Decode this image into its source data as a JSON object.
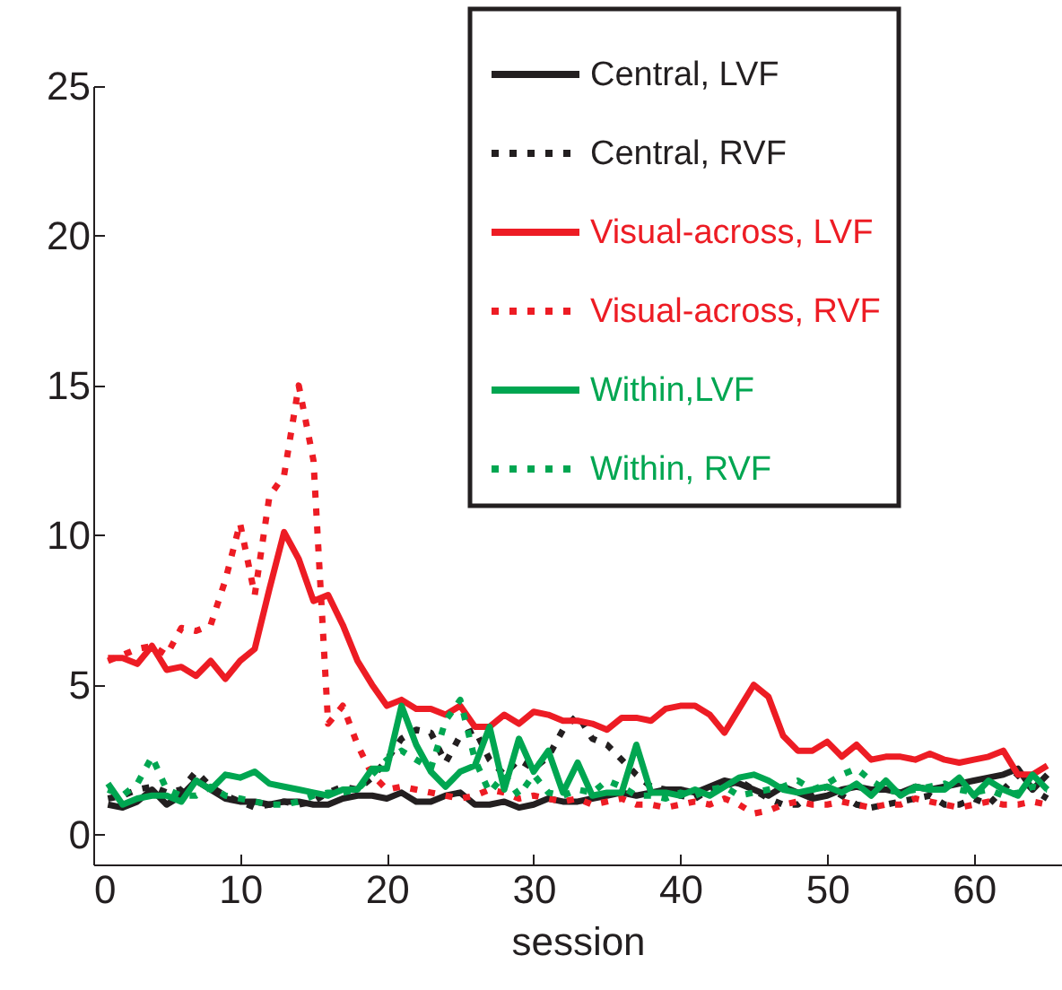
{
  "chart_data": {
    "type": "line",
    "xlabel": "session",
    "xlim": [
      0,
      66
    ],
    "xticks": [
      0,
      10,
      20,
      30,
      40,
      50,
      60
    ],
    "ylim": [
      -1,
      25
    ],
    "yticks": [
      0,
      5,
      10,
      15,
      20,
      25
    ],
    "grid": false,
    "legend": "top right",
    "marker": "none",
    "x": [
      1,
      2,
      3,
      4,
      5,
      6,
      7,
      8,
      9,
      10,
      11,
      12,
      13,
      14,
      15,
      16,
      17,
      18,
      19,
      20,
      21,
      22,
      23,
      24,
      25,
      26,
      27,
      28,
      29,
      30,
      31,
      32,
      33,
      34,
      35,
      36,
      37,
      38,
      39,
      40,
      41,
      42,
      43,
      44,
      45,
      46,
      47,
      48,
      49,
      50,
      51,
      52,
      53,
      54,
      55,
      56,
      57,
      58,
      59,
      60,
      61,
      62,
      63,
      64,
      65
    ],
    "series": [
      {
        "name": "Central, LVF",
        "color": "#231f20",
        "line_style": "solid",
        "values": [
          1.0,
          0.9,
          1.1,
          1.5,
          1.0,
          1.3,
          1.8,
          1.5,
          1.2,
          1.1,
          1.1,
          1.0,
          1.1,
          1.1,
          1.0,
          1.0,
          1.2,
          1.3,
          1.3,
          1.2,
          1.4,
          1.1,
          1.1,
          1.3,
          1.4,
          1.0,
          1.0,
          1.1,
          0.9,
          1.0,
          1.2,
          1.1,
          1.1,
          1.2,
          1.3,
          1.4,
          1.3,
          1.4,
          1.5,
          1.5,
          1.4,
          1.6,
          1.8,
          1.7,
          1.5,
          1.3,
          1.6,
          1.4,
          1.2,
          1.3,
          1.5,
          1.6,
          1.5,
          1.5,
          1.4,
          1.6,
          1.5,
          1.6,
          1.7,
          1.8,
          1.9,
          2.0,
          2.2,
          1.5,
          2.0
        ]
      },
      {
        "name": "Central, RVF",
        "color": "#231f20",
        "line_style": "dotted",
        "values": [
          1.2,
          1.3,
          1.5,
          1.6,
          1.4,
          1.5,
          2.1,
          1.6,
          1.3,
          1.1,
          0.9,
          1.0,
          1.1,
          1.0,
          1.1,
          1.4,
          1.6,
          1.5,
          1.9,
          2.5,
          3.2,
          3.5,
          3.4,
          2.4,
          3.3,
          3.5,
          2.5,
          2.0,
          2.5,
          2.2,
          2.6,
          3.5,
          4.0,
          3.2,
          3.0,
          2.5,
          2.0,
          1.6,
          1.5,
          1.3,
          1.2,
          1.5,
          1.6,
          1.8,
          1.5,
          1.2,
          1.0,
          1.0,
          1.4,
          1.6,
          1.3,
          1.0,
          0.9,
          1.0,
          1.1,
          1.2,
          1.3,
          1.0,
          1.0,
          1.2,
          1.0,
          1.5,
          2.0,
          1.5,
          1.2
        ]
      },
      {
        "name": "Visual-across, LVF",
        "color": "#ed1c24",
        "line_style": "solid",
        "values": [
          5.9,
          5.9,
          5.7,
          6.3,
          5.5,
          5.6,
          5.3,
          5.8,
          5.2,
          5.8,
          6.2,
          8.2,
          10.1,
          9.2,
          7.8,
          8.0,
          7.0,
          5.8,
          5.0,
          4.3,
          4.5,
          4.2,
          4.2,
          4.0,
          4.3,
          3.6,
          3.6,
          4.0,
          3.7,
          4.1,
          4.0,
          3.8,
          3.8,
          3.7,
          3.5,
          3.9,
          3.9,
          3.8,
          4.2,
          4.3,
          4.3,
          4.0,
          3.4,
          4.2,
          5.0,
          4.6,
          3.3,
          2.8,
          2.8,
          3.1,
          2.6,
          3.0,
          2.5,
          2.6,
          2.6,
          2.5,
          2.7,
          2.5,
          2.4,
          2.5,
          2.6,
          2.8,
          2.0,
          2.0,
          2.3
        ]
      },
      {
        "name": "Visual-across, RVF",
        "color": "#ed1c24",
        "line_style": "dotted",
        "values": [
          5.8,
          6.0,
          6.2,
          6.3,
          6.0,
          6.9,
          6.8,
          7.0,
          8.5,
          10.4,
          8.0,
          11.3,
          12.0,
          15.0,
          12.5,
          3.7,
          4.3,
          3.0,
          2.0,
          1.5,
          1.6,
          1.5,
          1.4,
          1.3,
          1.2,
          1.3,
          1.5,
          1.4,
          1.2,
          1.3,
          1.2,
          1.1,
          1.2,
          1.0,
          1.1,
          1.2,
          1.0,
          1.0,
          0.9,
          1.0,
          1.1,
          1.0,
          1.2,
          1.0,
          0.7,
          0.8,
          1.0,
          1.1,
          1.0,
          1.0,
          1.1,
          1.0,
          0.9,
          1.0,
          1.0,
          1.2,
          1.1,
          1.0,
          0.9,
          1.0,
          1.1,
          1.0,
          1.0,
          1.1,
          1.0
        ]
      },
      {
        "name": "Within,LVF",
        "color": "#00a651",
        "line_style": "solid",
        "values": [
          1.7,
          1.0,
          1.2,
          1.3,
          1.3,
          1.1,
          1.8,
          1.5,
          2.0,
          1.9,
          2.1,
          1.7,
          1.6,
          1.5,
          1.4,
          1.3,
          1.5,
          1.5,
          2.2,
          2.2,
          4.3,
          3.0,
          2.1,
          1.6,
          2.1,
          2.3,
          3.6,
          1.5,
          3.2,
          2.1,
          2.8,
          1.4,
          2.4,
          1.3,
          1.4,
          1.4,
          3.0,
          1.4,
          1.4,
          1.3,
          1.5,
          1.3,
          1.6,
          1.9,
          2.0,
          1.8,
          1.5,
          1.4,
          1.5,
          1.6,
          1.4,
          1.7,
          1.3,
          1.8,
          1.3,
          1.6,
          1.5,
          1.5,
          1.9,
          1.3,
          1.8,
          1.5,
          1.3,
          2.0,
          1.5
        ]
      },
      {
        "name": "Within, RVF",
        "color": "#00a651",
        "line_style": "dotted",
        "values": [
          1.5,
          1.3,
          1.7,
          2.6,
          1.5,
          1.3,
          1.3,
          1.6,
          1.3,
          1.2,
          1.1,
          1.0,
          1.0,
          1.1,
          1.3,
          1.4,
          1.4,
          1.5,
          2.0,
          2.5,
          2.8,
          2.5,
          2.2,
          3.8,
          4.5,
          2.5,
          1.4,
          2.0,
          1.3,
          2.0,
          1.4,
          1.3,
          1.5,
          1.4,
          1.8,
          1.6,
          1.3,
          1.3,
          1.2,
          1.4,
          1.3,
          1.5,
          1.6,
          1.3,
          1.4,
          1.5,
          1.6,
          1.8,
          1.5,
          1.7,
          2.0,
          2.2,
          1.8,
          1.5,
          1.4,
          1.5,
          1.6,
          1.7,
          1.5,
          1.4,
          1.5,
          1.3,
          1.4,
          1.6,
          1.5
        ]
      }
    ]
  }
}
